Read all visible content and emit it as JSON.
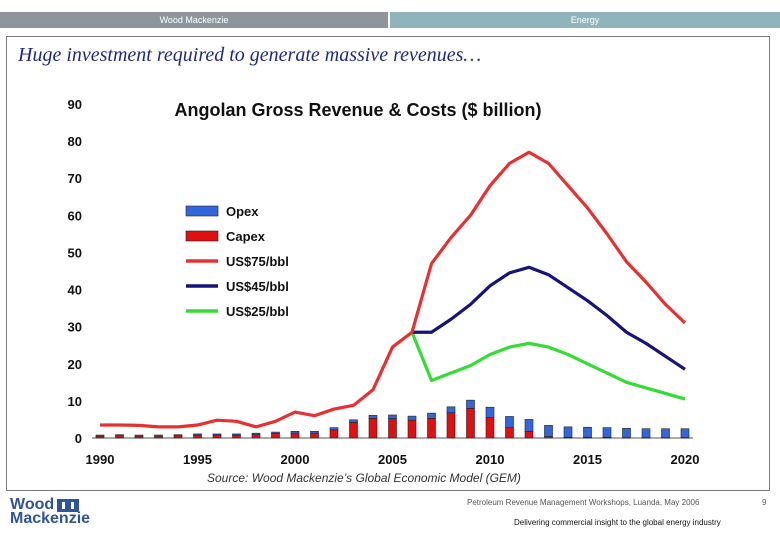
{
  "header": {
    "left_label": "Wood Mackenzie",
    "right_label": "Energy"
  },
  "slide": {
    "title": "Huge investment required to generate massive revenues…",
    "source": "Source: Wood Mackenzie’s Global Economic Model (GEM)"
  },
  "footer": {
    "logo_line1": "Wood",
    "logo_line2": "Mackenzie",
    "event": "Petroleum Revenue Management Workshops, Luanda, May 2006",
    "page": "9",
    "tagline": "Delivering commercial insight to the global energy industry"
  },
  "colors": {
    "brand": "#2f5597",
    "opex": "#3366dd",
    "capex": "#e01010",
    "us75": "#e83030",
    "us45": "#14147a",
    "us25": "#33dd33"
  },
  "chart_data": {
    "type": "bar",
    "title": "Angolan Gross Revenue & Costs ($ billion)",
    "ylim": [
      0,
      90
    ],
    "yticks": [
      0,
      10,
      20,
      30,
      40,
      50,
      60,
      70,
      80,
      90
    ],
    "xlim": [
      1990,
      2020
    ],
    "xticks": [
      1990,
      1995,
      2000,
      2005,
      2010,
      2015,
      2020
    ],
    "legend_position": "center-left",
    "years": [
      1990,
      1991,
      1992,
      1993,
      1994,
      1995,
      1996,
      1997,
      1998,
      1999,
      2000,
      2001,
      2002,
      2003,
      2004,
      2005,
      2006,
      2007,
      2008,
      2009,
      2010,
      2011,
      2012,
      2013,
      2014,
      2015,
      2016,
      2017,
      2018,
      2019,
      2020
    ],
    "bar_series": [
      {
        "name": "Opex",
        "color_key": "opex",
        "values": [
          0.3,
          0.3,
          0.3,
          0.3,
          0.3,
          0.3,
          0.3,
          0.3,
          0.4,
          0.4,
          0.5,
          0.5,
          0.6,
          0.7,
          0.8,
          1.0,
          1.1,
          1.4,
          1.6,
          2.2,
          2.8,
          3.0,
          3.2,
          3.0,
          2.8,
          2.7,
          2.6,
          2.5,
          2.4,
          2.4,
          2.4
        ]
      },
      {
        "name": "Capex",
        "color_key": "capex",
        "values": [
          0.5,
          0.6,
          0.5,
          0.5,
          0.6,
          0.8,
          0.8,
          0.8,
          0.9,
          1.2,
          1.3,
          1.3,
          2.2,
          4.2,
          5.3,
          5.2,
          4.8,
          5.3,
          6.8,
          8.0,
          5.5,
          2.8,
          1.8,
          0.4,
          0.2,
          0.2,
          0.2,
          0.1,
          0.1,
          0.1,
          0.1
        ]
      }
    ],
    "line_series": [
      {
        "name": "US$75/bbl",
        "color_key": "us75",
        "x": [
          1990,
          1991,
          1992,
          1993,
          1994,
          1995,
          1996,
          1997,
          1998,
          1999,
          2000,
          2001,
          2002,
          2003,
          2004,
          2005,
          2006,
          2007,
          2008,
          2009,
          2010,
          2011,
          2012,
          2013,
          2014,
          2015,
          2016,
          2017,
          2018,
          2019,
          2020
        ],
        "values": [
          3.5,
          3.5,
          3.4,
          3.0,
          3.0,
          3.5,
          4.8,
          4.5,
          3.0,
          4.5,
          7.0,
          6.0,
          7.8,
          8.8,
          13.0,
          24.5,
          28.5,
          47.0,
          54.0,
          60.0,
          68.0,
          74.0,
          77.0,
          74.0,
          68.0,
          62.0,
          55.0,
          47.5,
          42.0,
          36.0,
          31.0
        ]
      },
      {
        "name": "US$45/bbl",
        "color_key": "us45",
        "x": [
          2006,
          2007,
          2008,
          2009,
          2010,
          2011,
          2012,
          2013,
          2014,
          2015,
          2016,
          2017,
          2018,
          2019,
          2020
        ],
        "values": [
          28.5,
          28.5,
          32.0,
          36.0,
          41.0,
          44.5,
          46.0,
          44.0,
          40.5,
          37.0,
          33.0,
          28.5,
          25.5,
          22.0,
          18.5
        ]
      },
      {
        "name": "US$25/bbl",
        "color_key": "us25",
        "x": [
          2006,
          2007,
          2008,
          2009,
          2010,
          2011,
          2012,
          2013,
          2014,
          2015,
          2016,
          2017,
          2018,
          2019,
          2020
        ],
        "values": [
          28.5,
          15.5,
          17.5,
          19.5,
          22.5,
          24.5,
          25.5,
          24.5,
          22.5,
          20.0,
          17.5,
          15.0,
          13.5,
          12.0,
          10.5
        ]
      }
    ]
  }
}
